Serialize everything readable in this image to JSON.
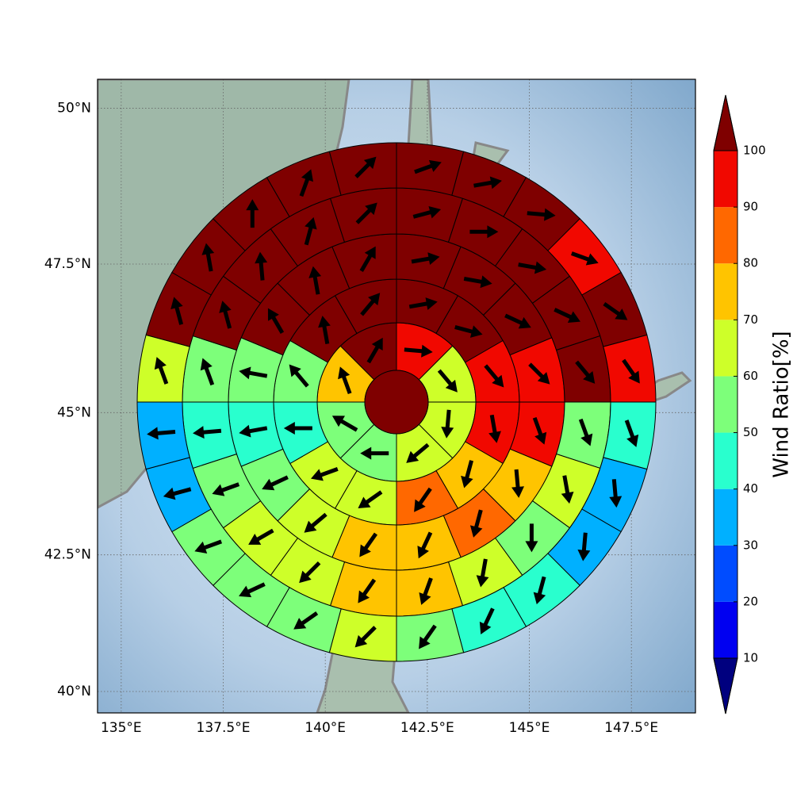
{
  "chart_data": {
    "type": "polar_heatmap",
    "xlim": [
      134.42,
      149.07
    ],
    "ylim": [
      39.6,
      50.45
    ],
    "xticks": [
      {
        "value": 135,
        "label": "135°E"
      },
      {
        "value": 137.5,
        "label": "137.5°E"
      },
      {
        "value": 140,
        "label": "140°E"
      },
      {
        "value": 142.5,
        "label": "142.5°E"
      },
      {
        "value": 145,
        "label": "145°E"
      },
      {
        "value": 147.5,
        "label": "147.5°E"
      }
    ],
    "yticks": [
      {
        "value": 40,
        "label": "40°N"
      },
      {
        "value": 42.5,
        "label": "42.5°N"
      },
      {
        "value": 45,
        "label": "45°N"
      },
      {
        "value": 47.5,
        "label": "47.5°N"
      },
      {
        "value": 50,
        "label": "50°N"
      }
    ],
    "grid": true,
    "colorbar": {
      "label": "Wind Ratio[%]",
      "ticks": [
        10,
        20,
        30,
        40,
        50,
        60,
        70,
        80,
        90,
        100
      ],
      "colors": [
        "#00007f",
        "#0000f1",
        "#004cff",
        "#00b0ff",
        "#29ffce",
        "#7dff7a",
        "#ceff29",
        "#ffc400",
        "#ff6800",
        "#f10800",
        "#7f0000"
      ]
    },
    "center_value": 105,
    "rings": [
      {
        "values": [
          95,
          65,
          65,
          65,
          55,
          55,
          75,
          105
        ],
        "directions": [
          95,
          140,
          185,
          230,
          270,
          300,
          340,
          30
        ]
      },
      {
        "values": [
          105,
          105,
          95,
          95,
          75,
          85,
          65,
          65,
          45,
          55,
          105,
          105
        ],
        "directions": [
          80,
          105,
          140,
          170,
          195,
          215,
          235,
          250,
          270,
          320,
          350,
          40
        ]
      },
      {
        "values": [
          105,
          105,
          105,
          95,
          95,
          75,
          85,
          75,
          75,
          65,
          55,
          45,
          55,
          105,
          105,
          105
        ],
        "directions": [
          80,
          100,
          115,
          135,
          160,
          175,
          195,
          205,
          215,
          230,
          245,
          260,
          280,
          330,
          350,
          30
        ]
      },
      {
        "values": [
          105,
          105,
          105,
          105,
          105,
          55,
          65,
          55,
          65,
          75,
          75,
          65,
          65,
          55,
          45,
          55,
          105,
          105,
          105,
          105
        ],
        "directions": [
          75,
          90,
          100,
          115,
          140,
          160,
          170,
          180,
          190,
          200,
          215,
          225,
          240,
          250,
          265,
          340,
          345,
          355,
          15,
          45
        ]
      },
      {
        "values": [
          105,
          105,
          105,
          95,
          105,
          95,
          45,
          35,
          35,
          45,
          45,
          55,
          65,
          55,
          55,
          55,
          35,
          35,
          65,
          105,
          105,
          105,
          105,
          105
        ],
        "directions": [
          70,
          80,
          95,
          110,
          125,
          145,
          160,
          175,
          185,
          195,
          205,
          215,
          225,
          235,
          245,
          250,
          255,
          265,
          340,
          345,
          350,
          0,
          20,
          45
        ]
      }
    ]
  }
}
